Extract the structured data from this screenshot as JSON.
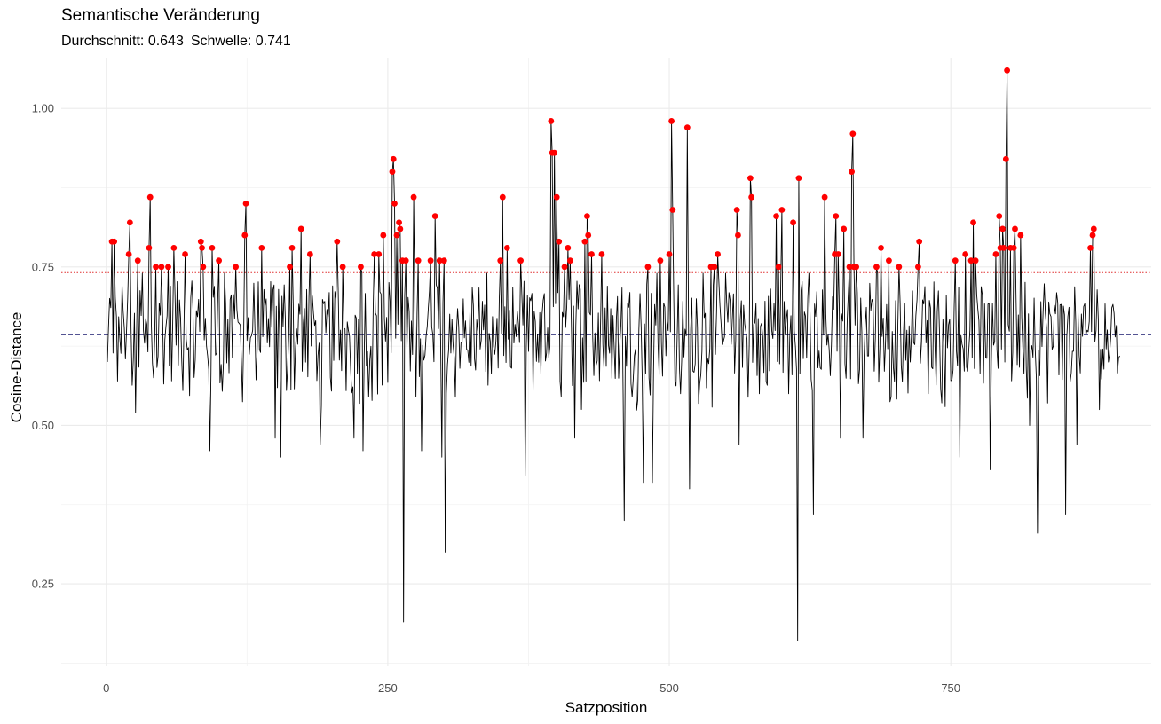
{
  "title": "Semantische Veränderung",
  "subtitle": {
    "mean_text": "Durchschnitt: 0.643",
    "threshold_text": "Schwelle: 0.741"
  },
  "chart_data": {
    "type": "line",
    "title": "Semantische Veränderung",
    "subtitle": "Durchschnitt: 0.643  Schwelle: 0.741",
    "xlabel": "Satzposition",
    "ylabel": "Cosine-Distance",
    "xlim": [
      -40,
      928
    ],
    "ylim": [
      0.12,
      1.08
    ],
    "xticks": [
      0,
      250,
      500,
      750
    ],
    "xtick_labels": [
      "0",
      "250",
      "500",
      "750"
    ],
    "yticks": [
      0.25,
      0.5,
      0.75,
      1.0
    ],
    "ytick_labels": [
      "0.25",
      "0.50",
      "0.75",
      "1.00"
    ],
    "grid": true,
    "n_points": 900,
    "mean_line": {
      "value": 0.643,
      "color": "#1a1a6e",
      "style": "dashed"
    },
    "threshold_line": {
      "value": 0.741,
      "color": "#e03030",
      "style": "dotted"
    },
    "line_color": "#000000",
    "marker_color": "#ff0000",
    "key_values": [
      [
        1,
        0.6
      ],
      [
        5,
        0.79
      ],
      [
        7,
        0.79
      ],
      [
        10,
        0.57
      ],
      [
        15,
        0.68
      ],
      [
        20,
        0.77
      ],
      [
        21,
        0.82
      ],
      [
        26,
        0.52
      ],
      [
        28,
        0.76
      ],
      [
        32,
        0.74
      ],
      [
        38,
        0.78
      ],
      [
        39,
        0.86
      ],
      [
        44,
        0.75
      ],
      [
        49,
        0.75
      ],
      [
        55,
        0.75
      ],
      [
        60,
        0.78
      ],
      [
        70,
        0.77
      ],
      [
        84,
        0.79
      ],
      [
        85,
        0.78
      ],
      [
        86,
        0.75
      ],
      [
        92,
        0.46
      ],
      [
        94,
        0.78
      ],
      [
        100,
        0.76
      ],
      [
        105,
        0.74
      ],
      [
        115,
        0.75
      ],
      [
        123,
        0.8
      ],
      [
        124,
        0.85
      ],
      [
        130,
        0.65
      ],
      [
        138,
        0.78
      ],
      [
        150,
        0.48
      ],
      [
        155,
        0.45
      ],
      [
        163,
        0.75
      ],
      [
        165,
        0.78
      ],
      [
        173,
        0.81
      ],
      [
        181,
        0.77
      ],
      [
        190,
        0.47
      ],
      [
        205,
        0.79
      ],
      [
        210,
        0.75
      ],
      [
        215,
        0.65
      ],
      [
        220,
        0.48
      ],
      [
        226,
        0.75
      ],
      [
        227,
        0.74
      ],
      [
        228,
        0.46
      ],
      [
        238,
        0.77
      ],
      [
        242,
        0.77
      ],
      [
        246,
        0.8
      ],
      [
        254,
        0.9
      ],
      [
        255,
        0.92
      ],
      [
        256,
        0.85
      ],
      [
        258,
        0.8
      ],
      [
        260,
        0.82
      ],
      [
        261,
        0.81
      ],
      [
        263,
        0.76
      ],
      [
        264,
        0.19
      ],
      [
        266,
        0.76
      ],
      [
        273,
        0.86
      ],
      [
        277,
        0.76
      ],
      [
        280,
        0.46
      ],
      [
        288,
        0.76
      ],
      [
        292,
        0.83
      ],
      [
        296,
        0.76
      ],
      [
        298,
        0.45
      ],
      [
        300,
        0.76
      ],
      [
        301,
        0.3
      ],
      [
        320,
        0.62
      ],
      [
        338,
        0.74
      ],
      [
        350,
        0.76
      ],
      [
        352,
        0.86
      ],
      [
        356,
        0.78
      ],
      [
        362,
        0.63
      ],
      [
        368,
        0.76
      ],
      [
        372,
        0.42
      ],
      [
        380,
        0.68
      ],
      [
        395,
        0.98
      ],
      [
        396,
        0.93
      ],
      [
        398,
        0.93
      ],
      [
        400,
        0.86
      ],
      [
        402,
        0.79
      ],
      [
        407,
        0.75
      ],
      [
        410,
        0.78
      ],
      [
        412,
        0.76
      ],
      [
        416,
        0.48
      ],
      [
        425,
        0.79
      ],
      [
        427,
        0.83
      ],
      [
        428,
        0.8
      ],
      [
        431,
        0.77
      ],
      [
        440,
        0.77
      ],
      [
        460,
        0.35
      ],
      [
        470,
        0.62
      ],
      [
        477,
        0.41
      ],
      [
        481,
        0.75
      ],
      [
        485,
        0.41
      ],
      [
        489,
        0.74
      ],
      [
        492,
        0.76
      ],
      [
        500,
        0.77
      ],
      [
        502,
        0.98
      ],
      [
        503,
        0.84
      ],
      [
        510,
        0.55
      ],
      [
        516,
        0.97
      ],
      [
        518,
        0.4
      ],
      [
        530,
        0.74
      ],
      [
        537,
        0.75
      ],
      [
        540,
        0.75
      ],
      [
        543,
        0.77
      ],
      [
        550,
        0.74
      ],
      [
        560,
        0.84
      ],
      [
        561,
        0.8
      ],
      [
        562,
        0.47
      ],
      [
        572,
        0.89
      ],
      [
        573,
        0.86
      ],
      [
        580,
        0.55
      ],
      [
        595,
        0.83
      ],
      [
        597,
        0.75
      ],
      [
        600,
        0.84
      ],
      [
        606,
        0.55
      ],
      [
        610,
        0.82
      ],
      [
        614,
        0.16
      ],
      [
        615,
        0.89
      ],
      [
        624,
        0.74
      ],
      [
        628,
        0.36
      ],
      [
        638,
        0.86
      ],
      [
        647,
        0.77
      ],
      [
        648,
        0.83
      ],
      [
        650,
        0.77
      ],
      [
        652,
        0.48
      ],
      [
        655,
        0.81
      ],
      [
        660,
        0.75
      ],
      [
        662,
        0.9
      ],
      [
        663,
        0.96
      ],
      [
        664,
        0.75
      ],
      [
        666,
        0.75
      ],
      [
        672,
        0.48
      ],
      [
        684,
        0.75
      ],
      [
        685,
        0.74
      ],
      [
        688,
        0.78
      ],
      [
        695,
        0.76
      ],
      [
        704,
        0.75
      ],
      [
        714,
        0.6
      ],
      [
        721,
        0.75
      ],
      [
        722,
        0.79
      ],
      [
        730,
        0.55
      ],
      [
        754,
        0.76
      ],
      [
        758,
        0.45
      ],
      [
        763,
        0.77
      ],
      [
        768,
        0.76
      ],
      [
        770,
        0.82
      ],
      [
        772,
        0.76
      ],
      [
        785,
        0.43
      ],
      [
        790,
        0.77
      ],
      [
        793,
        0.83
      ],
      [
        794,
        0.78
      ],
      [
        796,
        0.81
      ],
      [
        797,
        0.78
      ],
      [
        799,
        0.92
      ],
      [
        800,
        1.06
      ],
      [
        803,
        0.78
      ],
      [
        806,
        0.78
      ],
      [
        807,
        0.81
      ],
      [
        812,
        0.8
      ],
      [
        820,
        0.5
      ],
      [
        827,
        0.33
      ],
      [
        840,
        0.62
      ],
      [
        852,
        0.36
      ],
      [
        862,
        0.47
      ],
      [
        874,
        0.78
      ],
      [
        876,
        0.8
      ],
      [
        877,
        0.81
      ],
      [
        883,
        0.62
      ],
      [
        890,
        0.6
      ]
    ]
  }
}
